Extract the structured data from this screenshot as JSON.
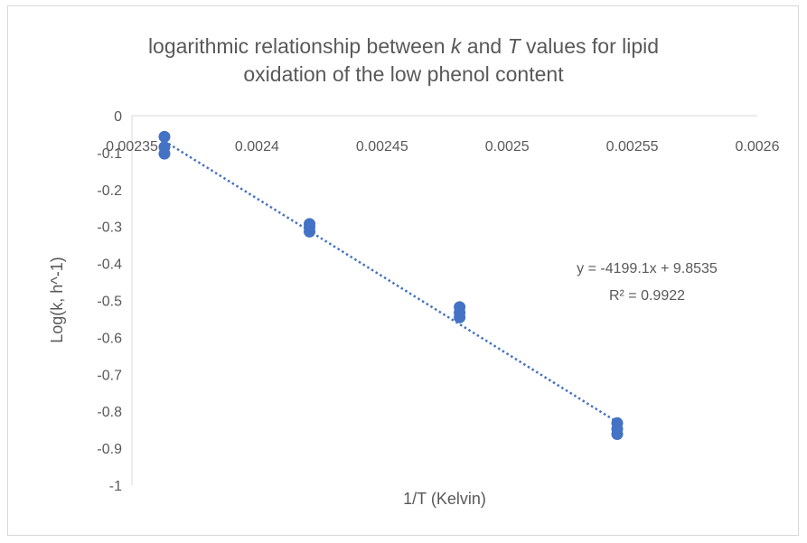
{
  "chart_data": {
    "type": "scatter",
    "title_parts": [
      {
        "text": "logarithmic relationship between ",
        "italic": false
      },
      {
        "text": "k",
        "italic": true
      },
      {
        "text": " and ",
        "italic": false
      },
      {
        "text": "T",
        "italic": true
      },
      {
        "text": " values for lipid",
        "italic": false
      }
    ],
    "title_line2": "oxidation of the low phenol content",
    "xlabel": "1/T (Kelvin)",
    "ylabel": "Log(k, h^-1)",
    "xlim": [
      0.00235,
      0.0026
    ],
    "ylim": [
      -1,
      0
    ],
    "x_ticks": [
      0.00235,
      0.0024,
      0.00245,
      0.0025,
      0.00255,
      0.0026
    ],
    "x_tick_labels": [
      "0.00235",
      "0.0024",
      "0.00245",
      "0.0025",
      "0.00255",
      "0.0026"
    ],
    "y_ticks": [
      0,
      -0.1,
      -0.2,
      -0.3,
      -0.4,
      -0.5,
      -0.6,
      -0.7,
      -0.8,
      -0.9,
      -1
    ],
    "y_tick_labels": [
      "0",
      "-0.1",
      "-0.2",
      "-0.3",
      "-0.4",
      "-0.5",
      "-0.6",
      "-0.7",
      "-0.8",
      "-0.9",
      "-1"
    ],
    "series": [
      {
        "color": "#4472c4",
        "points": [
          {
            "x": 0.002363,
            "y": -0.057
          },
          {
            "x": 0.002363,
            "y": -0.085
          },
          {
            "x": 0.002363,
            "y": -0.103
          },
          {
            "x": 0.002421,
            "y": -0.293
          },
          {
            "x": 0.002421,
            "y": -0.302
          },
          {
            "x": 0.002421,
            "y": -0.314
          },
          {
            "x": 0.002481,
            "y": -0.518
          },
          {
            "x": 0.002481,
            "y": -0.533
          },
          {
            "x": 0.002481,
            "y": -0.546
          },
          {
            "x": 0.002544,
            "y": -0.832
          },
          {
            "x": 0.002544,
            "y": -0.848
          },
          {
            "x": 0.002544,
            "y": -0.862
          }
        ]
      }
    ],
    "trendline": {
      "slope": -4199.1,
      "intercept": 9.8535,
      "x_range": [
        0.002363,
        0.002544
      ],
      "color": "#4472c4",
      "style": "dotted",
      "equation_label": "y = -4199.1x + 9.8535",
      "r2_label": "R² = 0.9922"
    },
    "grid": false,
    "legend": "none"
  }
}
